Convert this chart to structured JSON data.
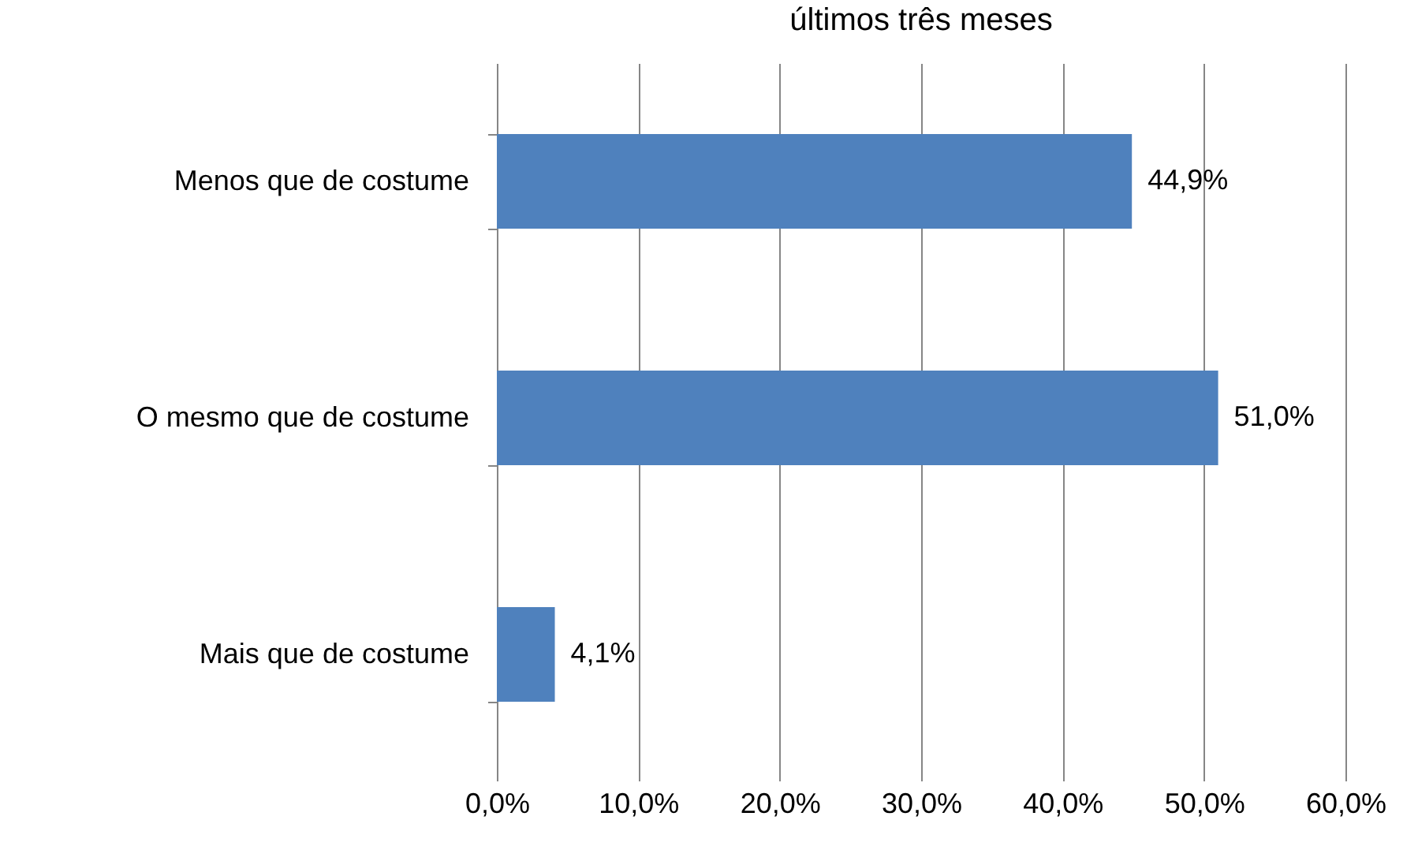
{
  "chart_data": {
    "type": "bar",
    "orientation": "horizontal",
    "title": "últimos três meses",
    "categories": [
      "Menos que de costume",
      "O mesmo que de costume",
      "Mais que de costume"
    ],
    "values": [
      44.9,
      51.0,
      4.1
    ],
    "value_labels": [
      "44,9%",
      "51,0%",
      "4,1%"
    ],
    "color": "#4f81bd",
    "xlim": [
      0,
      60
    ],
    "xticks": [
      {
        "value": 0,
        "label": "0,0%"
      },
      {
        "value": 10,
        "label": "10,0%"
      },
      {
        "value": 20,
        "label": "20,0%"
      },
      {
        "value": 30,
        "label": "30,0%"
      },
      {
        "value": 40,
        "label": "40,0%"
      },
      {
        "value": 50,
        "label": "50,0%"
      },
      {
        "value": 60,
        "label": "60,0%"
      }
    ],
    "grid": "x"
  }
}
